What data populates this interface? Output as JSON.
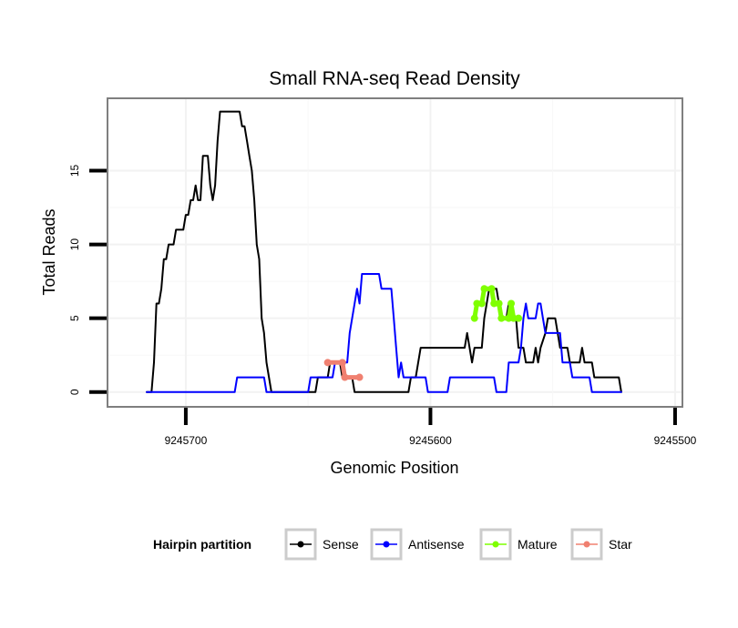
{
  "chart_data": {
    "type": "line",
    "title": "Small RNA-seq Read Density",
    "xlabel": "Genomic Position",
    "ylabel": "Total Reads",
    "x_reversed": true,
    "xlim": [
      9245732,
      9245497
    ],
    "ylim": [
      -1.0,
      19.9
    ],
    "x_ticks": [
      9245700,
      9245600,
      9245500
    ],
    "x_tick_labels": [
      "9245700",
      "9245600",
      "9245500"
    ],
    "y_ticks": [
      0,
      5,
      10,
      15
    ],
    "y_tick_labels": [
      "0",
      "5",
      "10",
      "15"
    ],
    "grid": true,
    "legend": {
      "title": "Hairpin partition",
      "position": "bottom",
      "entries": [
        "Sense",
        "Antisense",
        "Mature",
        "Star"
      ]
    },
    "series": [
      {
        "name": "Sense",
        "color": "#000000",
        "points": [
          [
            9245716,
            0
          ],
          [
            9245714,
            0
          ],
          [
            9245713,
            2
          ],
          [
            9245712,
            6
          ],
          [
            9245711,
            6
          ],
          [
            9245710,
            7
          ],
          [
            9245709,
            9
          ],
          [
            9245708,
            9
          ],
          [
            9245707,
            10
          ],
          [
            9245705,
            10
          ],
          [
            9245704,
            11
          ],
          [
            9245701,
            11
          ],
          [
            9245700,
            12
          ],
          [
            9245699,
            12
          ],
          [
            9245698,
            13
          ],
          [
            9245697,
            13
          ],
          [
            9245696,
            14
          ],
          [
            9245695,
            13
          ],
          [
            9245694,
            13
          ],
          [
            9245693,
            16
          ],
          [
            9245691,
            16
          ],
          [
            9245690,
            14
          ],
          [
            9245689,
            13
          ],
          [
            9245688,
            14
          ],
          [
            9245687,
            17
          ],
          [
            9245686,
            19
          ],
          [
            9245678,
            19
          ],
          [
            9245677,
            18
          ],
          [
            9245676,
            18
          ],
          [
            9245675,
            17
          ],
          [
            9245674,
            16
          ],
          [
            9245673,
            15
          ],
          [
            9245672,
            13
          ],
          [
            9245671,
            10
          ],
          [
            9245670,
            9
          ],
          [
            9245669,
            5
          ],
          [
            9245668,
            4
          ],
          [
            9245667,
            2
          ],
          [
            9245666,
            1
          ],
          [
            9245665,
            0
          ],
          [
            9245647,
            0
          ],
          [
            9245646,
            1
          ],
          [
            9245642,
            1
          ],
          [
            9245641,
            2
          ],
          [
            9245637,
            2
          ],
          [
            9245636,
            1
          ],
          [
            9245632,
            1
          ],
          [
            9245631,
            0
          ],
          [
            9245609,
            0
          ],
          [
            9245608,
            1
          ],
          [
            9245606,
            1
          ],
          [
            9245605,
            2
          ],
          [
            9245604,
            3
          ],
          [
            9245586,
            3
          ],
          [
            9245585,
            4
          ],
          [
            9245584,
            3
          ],
          [
            9245583,
            2
          ],
          [
            9245582,
            3
          ],
          [
            9245579,
            3
          ],
          [
            9245578,
            5
          ],
          [
            9245577,
            6
          ],
          [
            9245576,
            7
          ],
          [
            9245573,
            7
          ],
          [
            9245572,
            6
          ],
          [
            9245571,
            5
          ],
          [
            9245569,
            5
          ],
          [
            9245568,
            6
          ],
          [
            9245567,
            5
          ],
          [
            9245565,
            5
          ],
          [
            9245564,
            3
          ],
          [
            9245562,
            3
          ],
          [
            9245561,
            2
          ],
          [
            9245558,
            2
          ],
          [
            9245557,
            3
          ],
          [
            9245556,
            2
          ],
          [
            9245555,
            3
          ],
          [
            9245553,
            4
          ],
          [
            9245552,
            5
          ],
          [
            9245549,
            5
          ],
          [
            9245548,
            4
          ],
          [
            9245547,
            3
          ],
          [
            9245544,
            3
          ],
          [
            9245543,
            2
          ],
          [
            9245539,
            2
          ],
          [
            9245538,
            3
          ],
          [
            9245537,
            2
          ],
          [
            9245534,
            2
          ],
          [
            9245533,
            1
          ],
          [
            9245523,
            1
          ],
          [
            9245522,
            0
          ]
        ]
      },
      {
        "name": "Antisense",
        "color": "#0000ff",
        "points": [
          [
            9245716,
            0
          ],
          [
            9245680,
            0
          ],
          [
            9245679,
            1
          ],
          [
            9245668,
            1
          ],
          [
            9245667,
            0
          ],
          [
            9245650,
            0
          ],
          [
            9245649,
            1
          ],
          [
            9245640,
            1
          ],
          [
            9245639,
            2
          ],
          [
            9245634,
            2
          ],
          [
            9245633,
            4
          ],
          [
            9245632,
            5
          ],
          [
            9245631,
            6
          ],
          [
            9245630,
            7
          ],
          [
            9245629,
            6
          ],
          [
            9245628,
            8
          ],
          [
            9245621,
            8
          ],
          [
            9245620,
            7
          ],
          [
            9245616,
            7
          ],
          [
            9245615,
            5
          ],
          [
            9245614,
            3
          ],
          [
            9245613,
            1
          ],
          [
            9245612,
            2
          ],
          [
            9245611,
            1
          ],
          [
            9245602,
            1
          ],
          [
            9245601,
            0
          ],
          [
            9245593,
            0
          ],
          [
            9245592,
            1
          ],
          [
            9245574,
            1
          ],
          [
            9245573,
            0
          ],
          [
            9245569,
            0
          ],
          [
            9245568,
            2
          ],
          [
            9245564,
            2
          ],
          [
            9245563,
            3
          ],
          [
            9245562,
            5
          ],
          [
            9245561,
            6
          ],
          [
            9245560,
            5
          ],
          [
            9245557,
            5
          ],
          [
            9245556,
            6
          ],
          [
            9245555,
            6
          ],
          [
            9245554,
            5
          ],
          [
            9245553,
            4
          ],
          [
            9245547,
            4
          ],
          [
            9245546,
            2
          ],
          [
            9245543,
            2
          ],
          [
            9245542,
            1
          ],
          [
            9245535,
            1
          ],
          [
            9245534,
            0
          ],
          [
            9245522,
            0
          ]
        ]
      },
      {
        "name": "Mature",
        "color": "#7fff00",
        "points": [
          [
            9245582,
            5
          ],
          [
            9245581,
            6
          ],
          [
            9245579,
            6
          ],
          [
            9245578,
            7
          ],
          [
            9245575,
            7
          ],
          [
            9245574,
            6
          ],
          [
            9245572,
            6
          ],
          [
            9245571,
            5
          ],
          [
            9245568,
            5
          ],
          [
            9245567,
            6
          ],
          [
            9245566,
            5
          ],
          [
            9245564,
            5
          ]
        ]
      },
      {
        "name": "Star",
        "color": "#f08070",
        "points": [
          [
            9245642,
            2
          ],
          [
            9245636,
            2
          ],
          [
            9245635,
            1
          ],
          [
            9245629,
            1
          ]
        ]
      }
    ]
  }
}
